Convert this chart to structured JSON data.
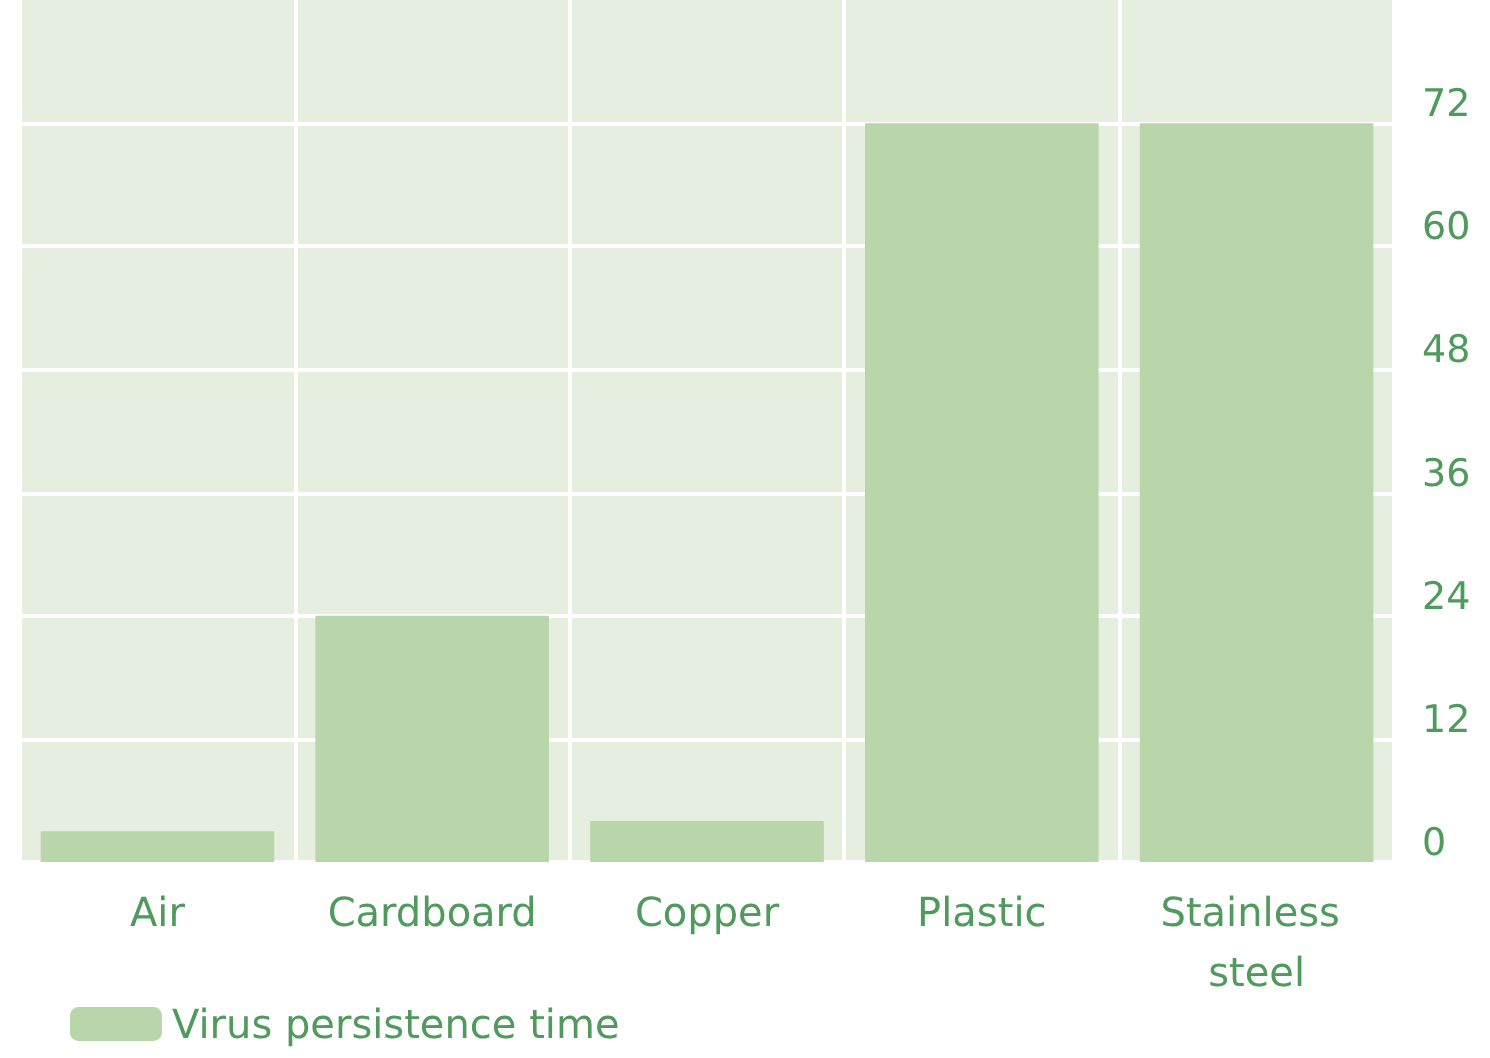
{
  "chart_data": {
    "type": "bar",
    "categories": [
      "Air",
      "Cardboard",
      "Copper",
      "Plastic",
      "Stainless steel"
    ],
    "series": [
      {
        "name": "Virus persistence time",
        "color": "#b9d5aa",
        "values": [
          3,
          24,
          4,
          72,
          72
        ]
      }
    ],
    "ylim": [
      0,
      84
    ],
    "yticks": [
      0,
      12,
      24,
      36,
      48,
      60,
      72
    ],
    "grid": true,
    "legend": "bottom left"
  }
}
